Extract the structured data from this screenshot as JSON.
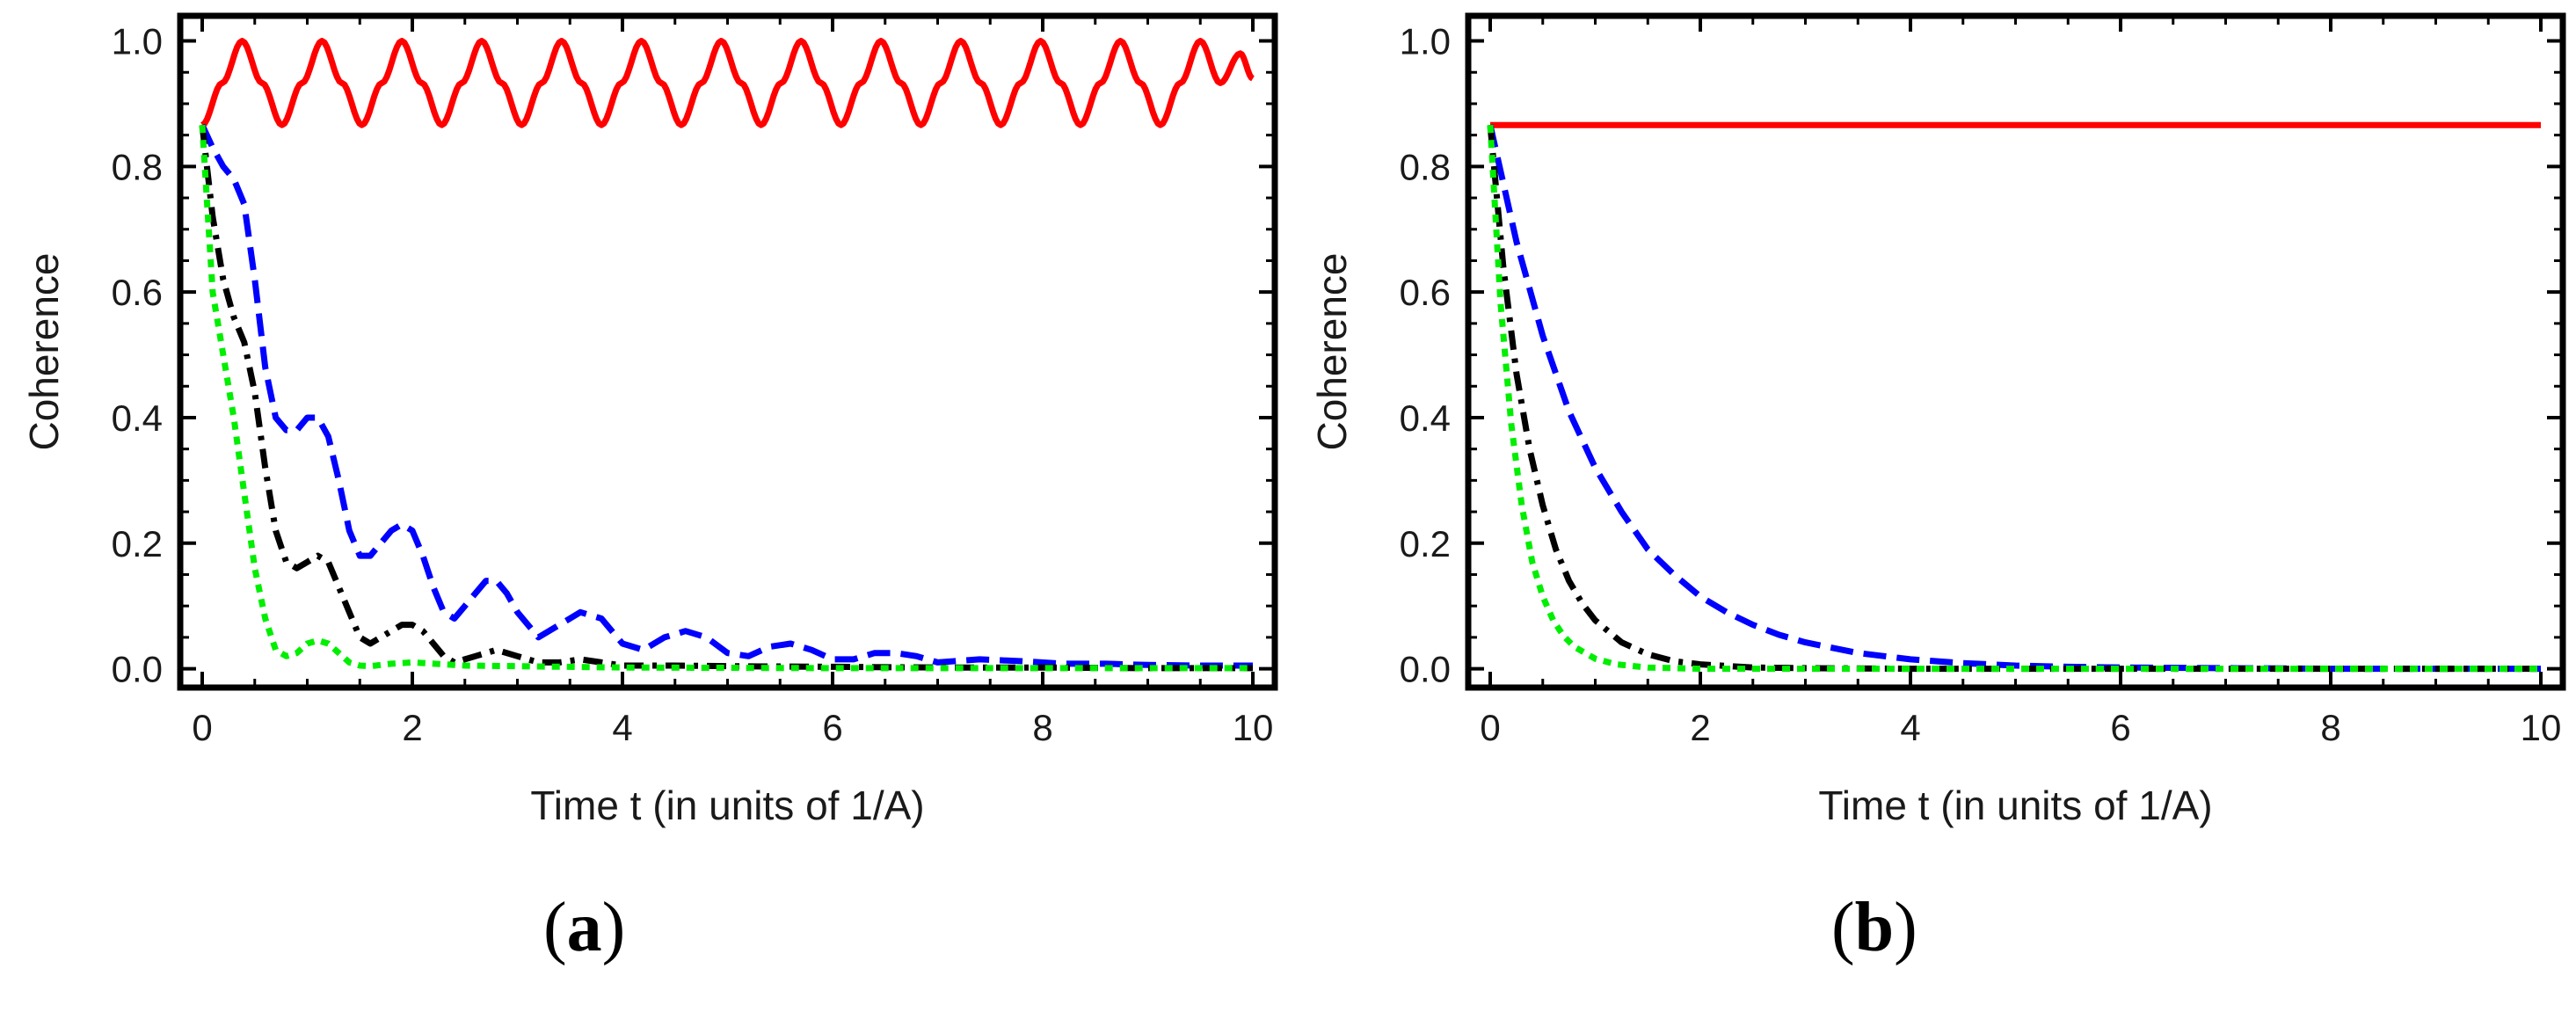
{
  "chart_data": [
    {
      "type": "line",
      "panel_label": "a",
      "xlabel": "Time t (in units of 1/A)",
      "ylabel": "Coherence",
      "xlim": [
        0,
        10
      ],
      "ylim": [
        -0.03,
        1.04
      ],
      "xticks": [
        0,
        2,
        4,
        6,
        8,
        10
      ],
      "yticks": [
        0.0,
        0.2,
        0.4,
        0.6,
        0.8,
        1.0
      ],
      "ytick_labels": [
        "0.0",
        "0.2",
        "0.4",
        "0.6",
        "0.8",
        "1.0"
      ],
      "series": [
        {
          "name": "red-solid",
          "color": "#ff0000",
          "dash": "solid",
          "x": [
            0,
            0.19,
            0.38,
            0.57,
            0.76,
            0.95,
            1.14,
            1.33,
            1.52,
            1.71,
            1.9,
            2.09,
            2.28,
            2.47,
            2.66,
            2.85,
            3.04,
            3.23,
            3.42,
            3.61,
            3.8,
            3.99,
            4.18,
            4.37,
            4.56,
            4.75,
            4.94,
            5.13,
            5.32,
            5.51,
            5.7,
            5.89,
            6.08,
            6.27,
            6.46,
            6.65,
            6.84,
            7.03,
            7.22,
            7.41,
            7.6,
            7.79,
            7.98,
            8.17,
            8.36,
            8.55,
            8.74,
            8.93,
            9.12,
            9.31,
            9.5,
            9.69,
            9.88,
            10.0
          ],
          "y": [
            0.866,
            0.933,
            1.0,
            0.933,
            0.866,
            0.933,
            1.0,
            0.933,
            0.866,
            0.933,
            1.0,
            0.933,
            0.866,
            0.933,
            1.0,
            0.933,
            0.866,
            0.933,
            1.0,
            0.933,
            0.866,
            0.933,
            1.0,
            0.933,
            0.866,
            0.933,
            1.0,
            0.933,
            0.866,
            0.933,
            1.0,
            0.933,
            0.866,
            0.933,
            1.0,
            0.933,
            0.866,
            0.933,
            1.0,
            0.933,
            0.866,
            0.933,
            1.0,
            0.933,
            0.866,
            0.933,
            1.0,
            0.933,
            0.866,
            0.933,
            1.0,
            0.933,
            0.98,
            0.94
          ]
        },
        {
          "name": "blue-dashed",
          "color": "#0000ff",
          "dash": "dashed",
          "x": [
            0,
            0.1,
            0.2,
            0.3,
            0.4,
            0.5,
            0.6,
            0.7,
            0.8,
            0.9,
            1.0,
            1.1,
            1.2,
            1.3,
            1.4,
            1.5,
            1.6,
            1.7,
            1.8,
            1.9,
            2.0,
            2.1,
            2.2,
            2.3,
            2.4,
            2.5,
            2.6,
            2.7,
            2.8,
            2.9,
            3.0,
            3.2,
            3.4,
            3.6,
            3.8,
            4.0,
            4.2,
            4.4,
            4.6,
            4.8,
            5.0,
            5.2,
            5.4,
            5.6,
            5.8,
            6.0,
            6.2,
            6.4,
            6.6,
            6.8,
            7.0,
            7.4,
            7.8,
            8.2,
            8.6,
            9.0,
            9.5,
            10.0
          ],
          "y": [
            0.866,
            0.83,
            0.8,
            0.78,
            0.74,
            0.62,
            0.48,
            0.4,
            0.38,
            0.38,
            0.4,
            0.4,
            0.37,
            0.3,
            0.22,
            0.18,
            0.18,
            0.2,
            0.22,
            0.23,
            0.22,
            0.18,
            0.13,
            0.09,
            0.08,
            0.1,
            0.12,
            0.14,
            0.14,
            0.12,
            0.09,
            0.05,
            0.07,
            0.09,
            0.08,
            0.04,
            0.03,
            0.05,
            0.06,
            0.05,
            0.025,
            0.02,
            0.035,
            0.04,
            0.03,
            0.015,
            0.015,
            0.025,
            0.025,
            0.02,
            0.01,
            0.015,
            0.012,
            0.008,
            0.008,
            0.006,
            0.005,
            0.005
          ]
        },
        {
          "name": "black-dashdot",
          "color": "#000000",
          "dash": "dashdot",
          "x": [
            0,
            0.1,
            0.2,
            0.3,
            0.4,
            0.5,
            0.6,
            0.7,
            0.8,
            0.9,
            1.0,
            1.1,
            1.2,
            1.3,
            1.4,
            1.5,
            1.6,
            1.7,
            1.8,
            1.9,
            2.0,
            2.1,
            2.2,
            2.3,
            2.4,
            2.6,
            2.8,
            3.0,
            3.2,
            3.4,
            3.6,
            3.8,
            4.0,
            4.5,
            5.0,
            6.0,
            7.0,
            8.0,
            9.0,
            10.0
          ],
          "y": [
            0.866,
            0.72,
            0.62,
            0.56,
            0.52,
            0.44,
            0.32,
            0.22,
            0.17,
            0.16,
            0.17,
            0.18,
            0.17,
            0.13,
            0.09,
            0.05,
            0.04,
            0.05,
            0.06,
            0.07,
            0.07,
            0.06,
            0.04,
            0.02,
            0.01,
            0.02,
            0.03,
            0.02,
            0.01,
            0.01,
            0.015,
            0.01,
            0.005,
            0.005,
            0.004,
            0.003,
            0.002,
            0.002,
            0.001,
            0.001
          ]
        },
        {
          "name": "green-dotted",
          "color": "#00ee00",
          "dash": "dotted",
          "x": [
            0,
            0.1,
            0.2,
            0.3,
            0.4,
            0.5,
            0.6,
            0.7,
            0.8,
            0.9,
            1.0,
            1.1,
            1.2,
            1.3,
            1.4,
            1.5,
            1.6,
            1.8,
            2.0,
            2.5,
            3.0,
            4.0,
            6.0,
            8.0,
            10.0
          ],
          "y": [
            0.866,
            0.6,
            0.5,
            0.4,
            0.28,
            0.16,
            0.08,
            0.03,
            0.02,
            0.025,
            0.04,
            0.045,
            0.04,
            0.025,
            0.01,
            0.005,
            0.004,
            0.008,
            0.01,
            0.005,
            0.004,
            0.002,
            0.001,
            0.001,
            0.001
          ]
        }
      ]
    },
    {
      "type": "line",
      "panel_label": "b",
      "xlabel": "Time t (in units of 1/A)",
      "ylabel": "Coherence",
      "xlim": [
        0,
        10
      ],
      "ylim": [
        -0.03,
        1.04
      ],
      "xticks": [
        0,
        2,
        4,
        6,
        8,
        10
      ],
      "yticks": [
        0.0,
        0.2,
        0.4,
        0.6,
        0.8,
        1.0
      ],
      "ytick_labels": [
        "0.0",
        "0.2",
        "0.4",
        "0.6",
        "0.8",
        "1.0"
      ],
      "series": [
        {
          "name": "red-solid",
          "color": "#ff0000",
          "dash": "solid",
          "x": [
            0,
            10
          ],
          "y": [
            0.866,
            0.866
          ]
        },
        {
          "name": "blue-dashed",
          "color": "#0000ff",
          "dash": "dashed",
          "x": [
            0,
            0.25,
            0.5,
            0.75,
            1.0,
            1.25,
            1.5,
            1.75,
            2.0,
            2.25,
            2.5,
            2.75,
            3.0,
            3.5,
            4.0,
            4.5,
            5.0,
            5.5,
            6.0,
            7.0,
            8.0,
            9.0,
            10.0
          ],
          "y": [
            0.866,
            0.68,
            0.53,
            0.41,
            0.32,
            0.25,
            0.19,
            0.15,
            0.115,
            0.09,
            0.07,
            0.054,
            0.042,
            0.025,
            0.015,
            0.009,
            0.005,
            0.003,
            0.002,
            0.001,
            0.0,
            0.0,
            0.0
          ]
        },
        {
          "name": "black-dashdot",
          "color": "#000000",
          "dash": "dashdot",
          "x": [
            0,
            0.125,
            0.25,
            0.375,
            0.5,
            0.625,
            0.75,
            0.875,
            1.0,
            1.25,
            1.5,
            1.75,
            2.0,
            2.5,
            3.0,
            4.0,
            5.0,
            6.0,
            8.0,
            10.0
          ],
          "y": [
            0.866,
            0.64,
            0.47,
            0.35,
            0.26,
            0.19,
            0.14,
            0.104,
            0.077,
            0.042,
            0.023,
            0.012,
            0.007,
            0.002,
            0.001,
            0.0,
            0.0,
            0.0,
            0.0,
            0.0
          ]
        },
        {
          "name": "green-dotted",
          "color": "#00ee00",
          "dash": "dotted",
          "x": [
            0,
            0.1,
            0.2,
            0.3,
            0.4,
            0.5,
            0.6,
            0.7,
            0.8,
            1.0,
            1.2,
            1.5,
            2.0,
            3.0,
            4.0,
            6.0,
            8.0,
            10.0
          ],
          "y": [
            0.866,
            0.58,
            0.39,
            0.26,
            0.17,
            0.115,
            0.077,
            0.052,
            0.035,
            0.016,
            0.007,
            0.002,
            0.0,
            0.0,
            0.0,
            0.0,
            0.0,
            0.0
          ]
        }
      ]
    }
  ]
}
